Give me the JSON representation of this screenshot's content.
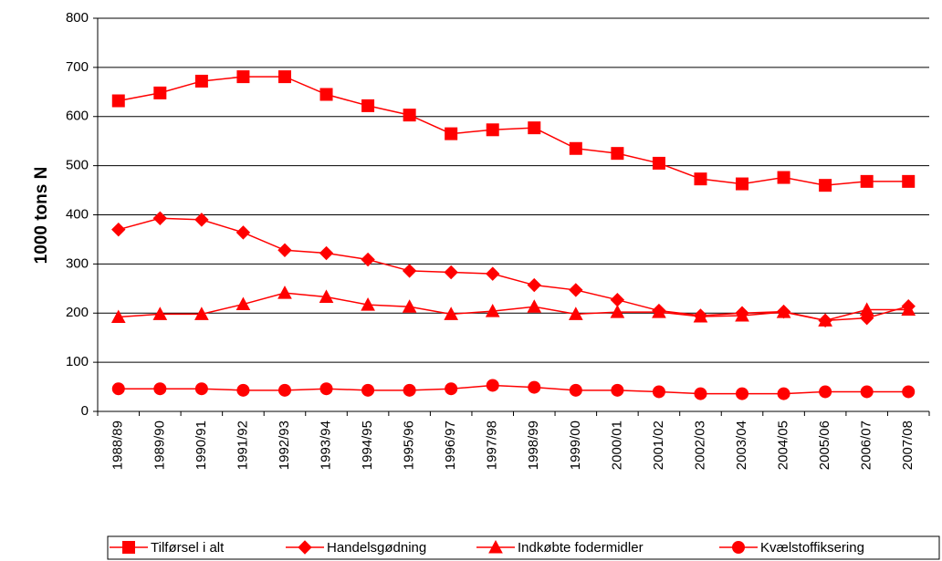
{
  "chart_data": {
    "type": "line",
    "y_label": "1000 tons N",
    "categories": [
      "1988/89",
      "1989/90",
      "1990/91",
      "1991/92",
      "1992/93",
      "1993/94",
      "1994/95",
      "1995/96",
      "1996/97",
      "1997/98",
      "1998/99",
      "1999/00",
      "2000/01",
      "2001/02",
      "2002/03",
      "2003/04",
      "2004/05",
      "2005/06",
      "2006/07",
      "2007/08"
    ],
    "series": [
      {
        "name": "Tilførsel i alt",
        "color": "#ff0000",
        "marker": "square",
        "values": [
          632,
          648,
          672,
          681,
          681,
          645,
          622,
          603,
          565,
          573,
          577,
          535,
          525,
          505,
          473,
          463,
          476,
          460,
          468,
          468
        ]
      },
      {
        "name": "Handelsgødning",
        "color": "#ff0000",
        "marker": "diamond",
        "values": [
          370,
          393,
          390,
          364,
          328,
          322,
          309,
          286,
          283,
          280,
          257,
          247,
          227,
          205,
          195,
          200,
          203,
          185,
          190,
          214
        ]
      },
      {
        "name": "Indkøbte fodermidler",
        "color": "#ff0000",
        "marker": "triangle",
        "values": [
          192,
          198,
          198,
          218,
          241,
          233,
          217,
          213,
          198,
          204,
          213,
          198,
          202,
          202,
          193,
          195,
          202,
          185,
          207,
          207
        ]
      },
      {
        "name": "Kvælstoffiksering",
        "color": "#ff0000",
        "marker": "circle",
        "values": [
          46,
          46,
          46,
          43,
          43,
          46,
          43,
          43,
          46,
          53,
          49,
          43,
          43,
          40,
          36,
          36,
          36,
          40,
          40,
          40
        ]
      }
    ],
    "ylim": [
      0,
      800
    ],
    "yticks": [
      0,
      100,
      200,
      300,
      400,
      500,
      600,
      700,
      800
    ],
    "grid": true,
    "legend": "bottom"
  }
}
